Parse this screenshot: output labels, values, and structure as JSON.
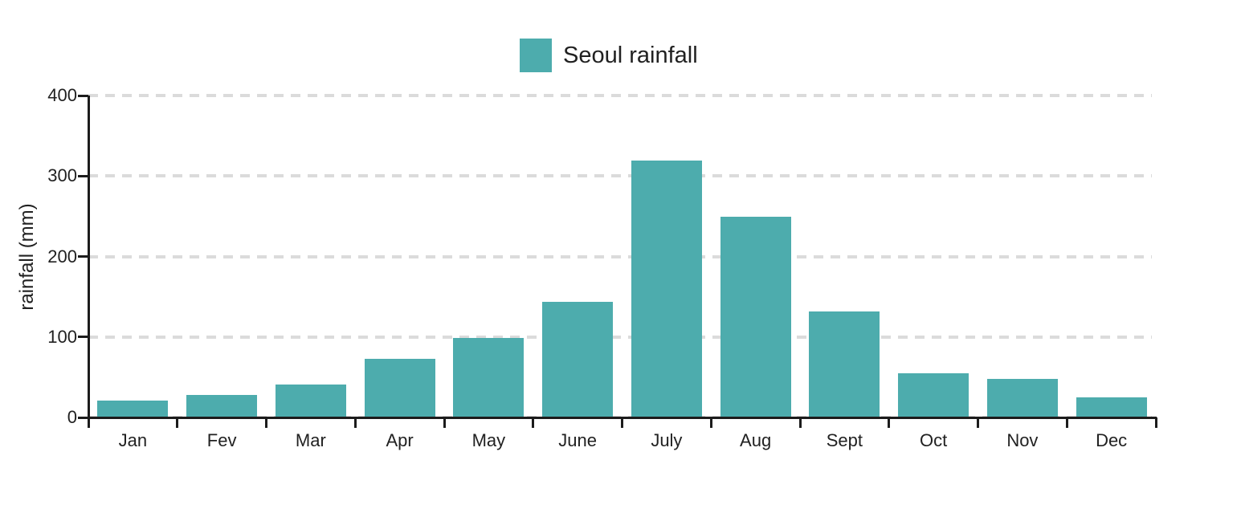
{
  "chart_data": {
    "type": "bar",
    "title": "Seoul rainfall",
    "categories": [
      "Jan",
      "Fev",
      "Mar",
      "Apr",
      "May",
      "June",
      "July",
      "Aug",
      "Sept",
      "Oct",
      "Nov",
      "Dec"
    ],
    "series": [
      {
        "name": "Seoul rainfall",
        "color": "#4DACAD",
        "values": [
          21,
          28,
          41,
          73,
          99,
          144,
          319,
          249,
          132,
          55,
          48,
          25
        ]
      }
    ],
    "xlabel": "",
    "ylabel": "rainfall (mm)",
    "ylim": [
      0,
      400
    ],
    "yticks": [
      0,
      100,
      200,
      300,
      400
    ],
    "grid": "horizontal-dashed",
    "legend_position": "top-center"
  },
  "colors": {
    "bar": "#4DACAD",
    "grid": "#DBDBDB",
    "axis": "#1C1C1C",
    "text": "#212121",
    "background": "#FFFFFF"
  }
}
